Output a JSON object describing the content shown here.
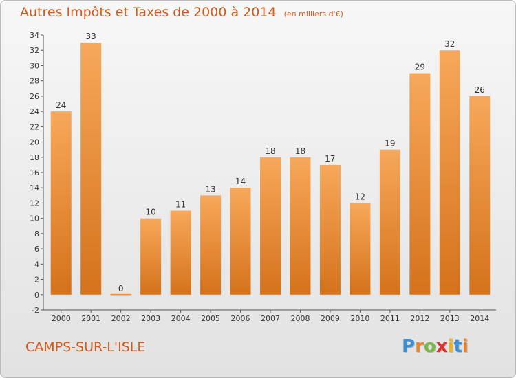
{
  "header": {
    "title": "Autres Impôts et Taxes de 2000 à 2014",
    "unit": "(en milliers d'€)"
  },
  "footer": {
    "commune": "CAMPS-SUR-L'ISLE",
    "logo_letters": [
      "P",
      "r",
      "o",
      "x",
      "i",
      "t",
      "i"
    ],
    "logo_colors": [
      "#3a8fd9",
      "#e8852b",
      "#7ab648",
      "#e0302d",
      "#f2b019",
      "#3a8fd9",
      "#e8852b"
    ]
  },
  "colors": {
    "bar_light": "#f7a85a",
    "bar_dark": "#d5721b",
    "accent": "#d25a1a"
  },
  "chart_data": {
    "type": "bar",
    "categories": [
      "2000",
      "2001",
      "2002",
      "2003",
      "2004",
      "2005",
      "2006",
      "2007",
      "2008",
      "2009",
      "2010",
      "2011",
      "2012",
      "2013",
      "2014"
    ],
    "values": [
      24,
      33,
      0,
      10,
      11,
      13,
      14,
      18,
      18,
      17,
      12,
      19,
      29,
      32,
      26
    ],
    "ylim": [
      -2,
      34
    ],
    "yticks": [
      -2,
      0,
      2,
      4,
      6,
      8,
      10,
      12,
      14,
      16,
      18,
      20,
      22,
      24,
      26,
      28,
      30,
      32,
      34
    ],
    "grid": false,
    "data_labels": true
  }
}
